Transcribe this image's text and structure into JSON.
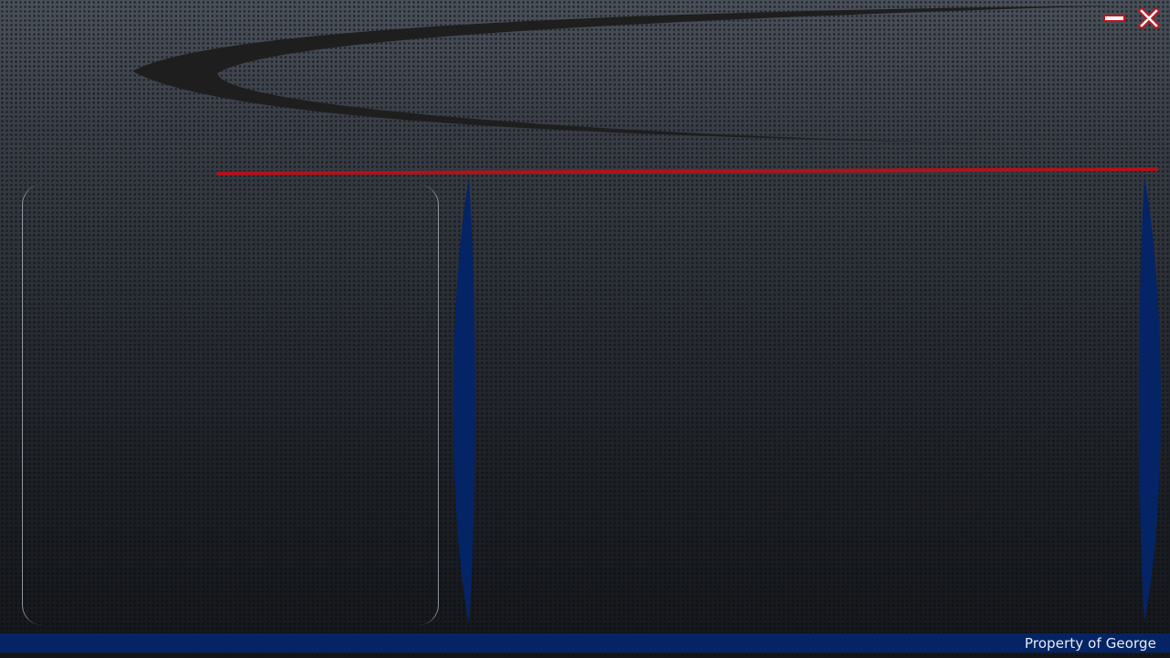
{
  "window": {
    "controls": {
      "minimize_icon": "minimize-icon",
      "close_icon": "close-icon"
    }
  },
  "footer": {
    "owner_text": "Property of George"
  },
  "colors": {
    "accent_red": "#b3121a",
    "accent_blue": "#042466",
    "panel_border": "#8c939c",
    "swoosh": "#1e1e1e",
    "footer_text": "#e8ecf4"
  }
}
